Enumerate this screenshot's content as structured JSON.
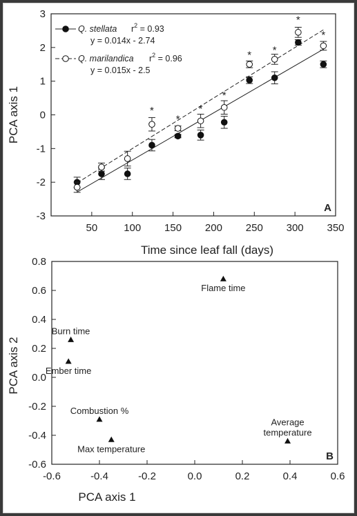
{
  "chart_data": [
    {
      "panel": "A",
      "type": "scatter",
      "xlabel": "Time since leaf fall (days)",
      "ylabel": "PCA axis 1",
      "xlim": [
        0,
        350
      ],
      "ylim": [
        -3,
        3
      ],
      "xticks": [
        50,
        100,
        150,
        200,
        250,
        300,
        350
      ],
      "yticks": [
        -3,
        -2,
        -1,
        0,
        1,
        2,
        3
      ],
      "legend_position": "top-left",
      "series": [
        {
          "name": "Q. stellata",
          "r2_prefix": "r",
          "r2_sup": "2",
          "r2_suffix": " = 0.93",
          "equation": "y = 0.014x - 2.74",
          "marker": "filled-circle",
          "line_style": "solid",
          "fit": {
            "slope": 0.014,
            "intercept": -2.74
          },
          "x": [
            32,
            62,
            94,
            124,
            156,
            184,
            213,
            244,
            275,
            304,
            335
          ],
          "y": [
            -2.0,
            -1.75,
            -1.75,
            -0.9,
            -0.63,
            -0.6,
            -0.22,
            1.03,
            1.1,
            2.15,
            1.5
          ],
          "err": [
            0.15,
            0.17,
            0.17,
            0.17,
            0.05,
            0.15,
            0.18,
            0.1,
            0.18,
            0.08,
            0.1
          ]
        },
        {
          "name": "Q. marilandica",
          "r2_prefix": "r",
          "r2_sup": "2",
          "r2_suffix": " = 0.96",
          "equation": "y = 0.015x - 2.5",
          "marker": "open-circle",
          "line_style": "dashed",
          "fit": {
            "slope": 0.015,
            "intercept": -2.5
          },
          "x": [
            32,
            62,
            94,
            124,
            156,
            184,
            213,
            244,
            275,
            304,
            335
          ],
          "y": [
            -2.15,
            -1.55,
            -1.3,
            -0.28,
            -0.4,
            -0.18,
            0.22,
            1.5,
            1.65,
            2.45,
            2.05
          ],
          "err": [
            0.15,
            0.12,
            0.22,
            0.2,
            0.07,
            0.2,
            0.2,
            0.1,
            0.15,
            0.15,
            0.13
          ]
        }
      ],
      "significance": {
        "symbol": "*",
        "x": [
          124,
          156,
          184,
          213,
          244,
          275,
          304,
          335
        ],
        "y": [
          0.15,
          -0.1,
          0.2,
          0.6,
          1.8,
          1.95,
          2.85,
          2.4
        ]
      },
      "panel_label": "A"
    },
    {
      "panel": "B",
      "type": "scatter",
      "xlabel": "PCA axis 1",
      "ylabel": "PCA axis 2",
      "xlim": [
        -0.6,
        0.6
      ],
      "ylim": [
        -0.6,
        0.8
      ],
      "xticks": [
        -0.6,
        -0.4,
        -0.2,
        0.0,
        0.2,
        0.4,
        0.6
      ],
      "xtick_labels": [
        "-0.6",
        "-0.4",
        "-0.2",
        "0.0",
        "0.2",
        "0.4",
        "0.6"
      ],
      "yticks": [
        -0.6,
        -0.4,
        -0.2,
        0.0,
        0.2,
        0.4,
        0.6,
        0.8
      ],
      "ytick_labels": [
        "-0.6",
        "-0.4",
        "-0.2",
        "0.0",
        "0.2",
        "0.4",
        "0.6",
        "0.8"
      ],
      "marker": "filled-triangle",
      "points": [
        {
          "label": "Flame time",
          "x": 0.12,
          "y": 0.68,
          "label_pos": "below"
        },
        {
          "label": "Burn time",
          "x": -0.52,
          "y": 0.26,
          "label_pos": "above"
        },
        {
          "label": "Ember time",
          "x": -0.53,
          "y": 0.11,
          "label_pos": "below"
        },
        {
          "label": "Combustion %",
          "x": -0.4,
          "y": -0.29,
          "label_pos": "above"
        },
        {
          "label": "Max temperature",
          "x": -0.35,
          "y": -0.43,
          "label_pos": "below"
        },
        {
          "label": "Average\ntemperature",
          "x": 0.39,
          "y": -0.44,
          "label_pos": "above"
        }
      ],
      "panel_label": "B"
    }
  ]
}
